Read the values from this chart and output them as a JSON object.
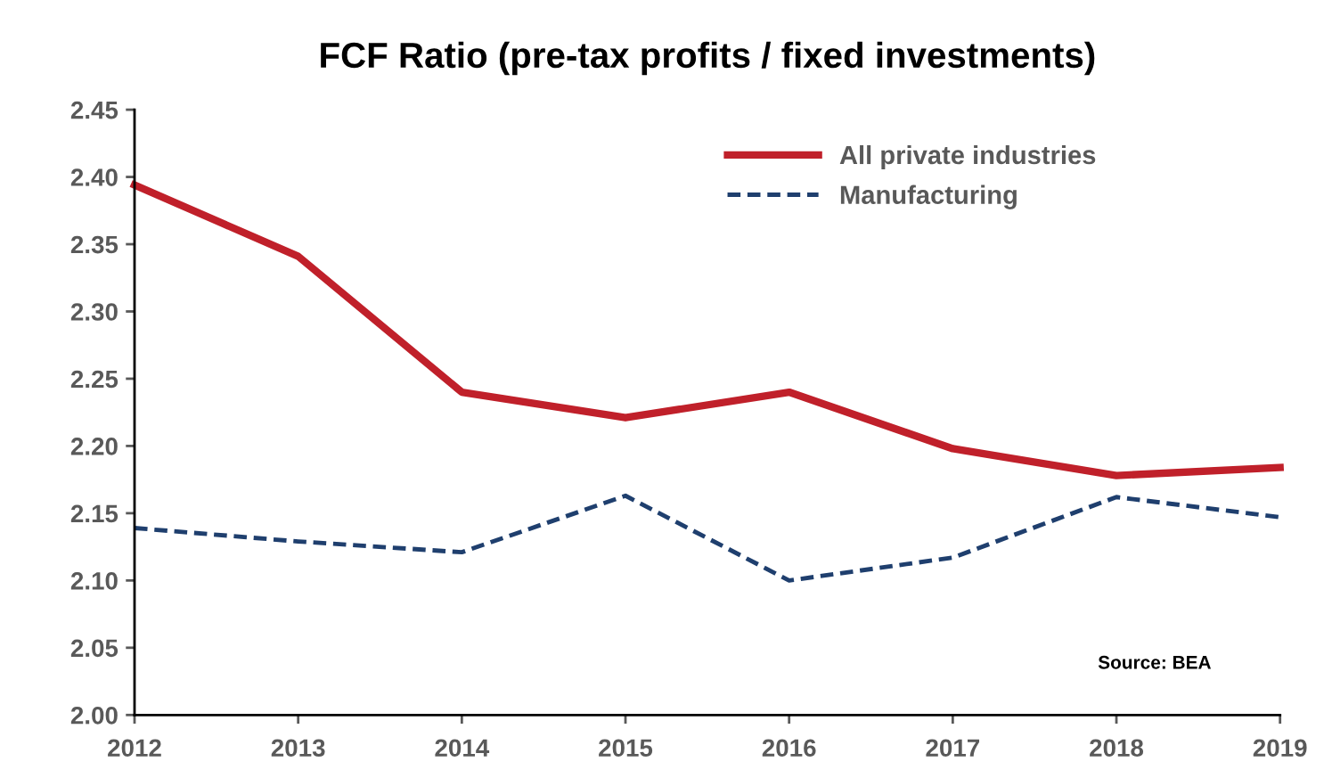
{
  "chart_data": {
    "type": "line",
    "title": "FCF Ratio (pre-tax profits / fixed investments)",
    "x": [
      2012,
      2013,
      2014,
      2015,
      2016,
      2017,
      2018,
      2019
    ],
    "series": [
      {
        "name": "All private industries",
        "color": "#c0202a",
        "line_style": "solid",
        "values": [
          2.394,
          2.341,
          2.24,
          2.221,
          2.24,
          2.198,
          2.178,
          2.184
        ]
      },
      {
        "name": "Manufacturing",
        "color": "#1f3f6e",
        "line_style": "dashed",
        "values": [
          2.139,
          2.129,
          2.121,
          2.163,
          2.1,
          2.117,
          2.162,
          2.147
        ]
      }
    ],
    "xlim": [
      2012,
      2019
    ],
    "xticks": [
      2012,
      2013,
      2014,
      2015,
      2016,
      2017,
      2018,
      2019
    ],
    "ylim": [
      2.0,
      2.45
    ],
    "yticks": [
      {
        "value": 2.0,
        "label": "2.00"
      },
      {
        "value": 2.05,
        "label": "2.05"
      },
      {
        "value": 2.1,
        "label": "2.10"
      },
      {
        "value": 2.15,
        "label": "2.15"
      },
      {
        "value": 2.2,
        "label": "2.20"
      },
      {
        "value": 2.25,
        "label": "2.25"
      },
      {
        "value": 2.3,
        "label": "2.30"
      },
      {
        "value": 2.35,
        "label": "2.35"
      },
      {
        "value": 2.4,
        "label": "2.40"
      },
      {
        "value": 2.45,
        "label": "2.45"
      }
    ],
    "grid": false,
    "legend": "top right",
    "marker": "none",
    "annotations": [
      "Source: BEA"
    ]
  }
}
